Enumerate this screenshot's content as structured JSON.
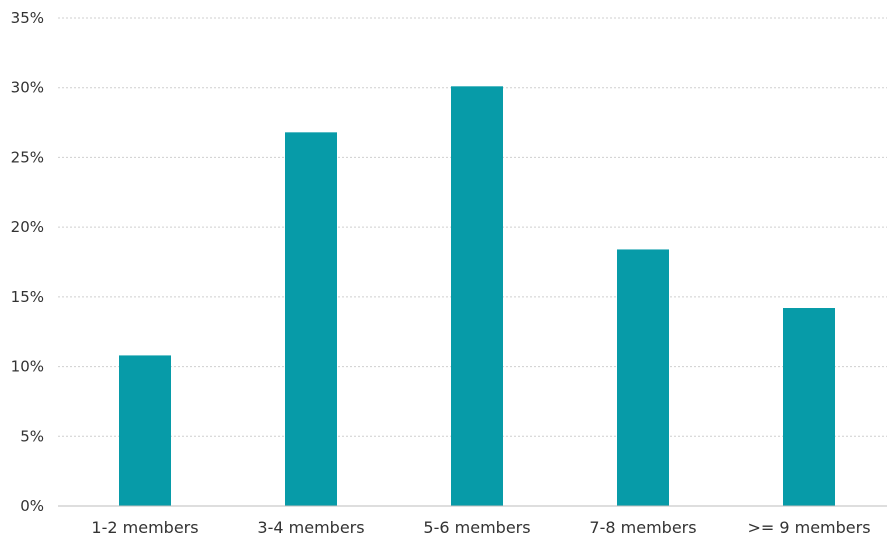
{
  "chart_data": {
    "type": "bar",
    "categories": [
      "1-2 members",
      "3-4 members",
      "5-6 members",
      "7-8 members",
      ">= 9 members"
    ],
    "series": [
      {
        "values": [
          10.8,
          26.8,
          30.1,
          18.4,
          14.2
        ],
        "color": "#079ba8"
      }
    ],
    "ylim": [
      0,
      35
    ],
    "yticks": [
      0,
      5,
      10,
      15,
      20,
      25,
      30,
      35
    ],
    "ytick_labels": [
      "0%",
      "5%",
      "10%",
      "15%",
      "20%",
      "25%",
      "30%",
      "35%"
    ],
    "grid": true,
    "legend": "none"
  }
}
